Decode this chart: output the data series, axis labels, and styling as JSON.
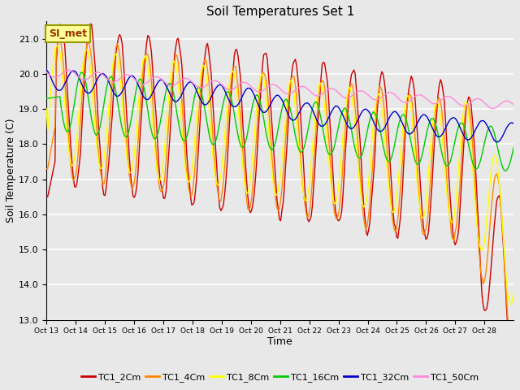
{
  "title": "Soil Temperatures Set 1",
  "xlabel": "Time",
  "ylabel": "Soil Temperature (C)",
  "ylim": [
    13.0,
    21.5
  ],
  "yticks": [
    13.0,
    14.0,
    15.0,
    16.0,
    17.0,
    18.0,
    19.0,
    20.0,
    21.0
  ],
  "x_labels": [
    "Oct 13",
    "Oct 14",
    "Oct 15",
    "Oct 16",
    "Oct 17",
    "Oct 18",
    "Oct 19",
    "Oct 20",
    "Oct 21",
    "Oct 22",
    "Oct 23",
    "Oct 24",
    "Oct 25",
    "Oct 26",
    "Oct 27",
    "Oct 28"
  ],
  "legend_labels": [
    "TC1_2Cm",
    "TC1_4Cm",
    "TC1_8Cm",
    "TC1_16Cm",
    "TC1_32Cm",
    "TC1_50Cm"
  ],
  "colors": [
    "#cc0000",
    "#ff8800",
    "#ffff00",
    "#00cc00",
    "#0000cc",
    "#ff88dd"
  ],
  "annotation_text": "SI_met",
  "annotation_bg": "#ffff99",
  "annotation_edge": "#999900",
  "annotation_textcolor": "#993300",
  "background_color": "#e8e8e8",
  "fig_background": "#e8e8e8",
  "grid_color": "#ffffff",
  "linewidth": 1.0,
  "n_days": 16,
  "n_points": 384
}
